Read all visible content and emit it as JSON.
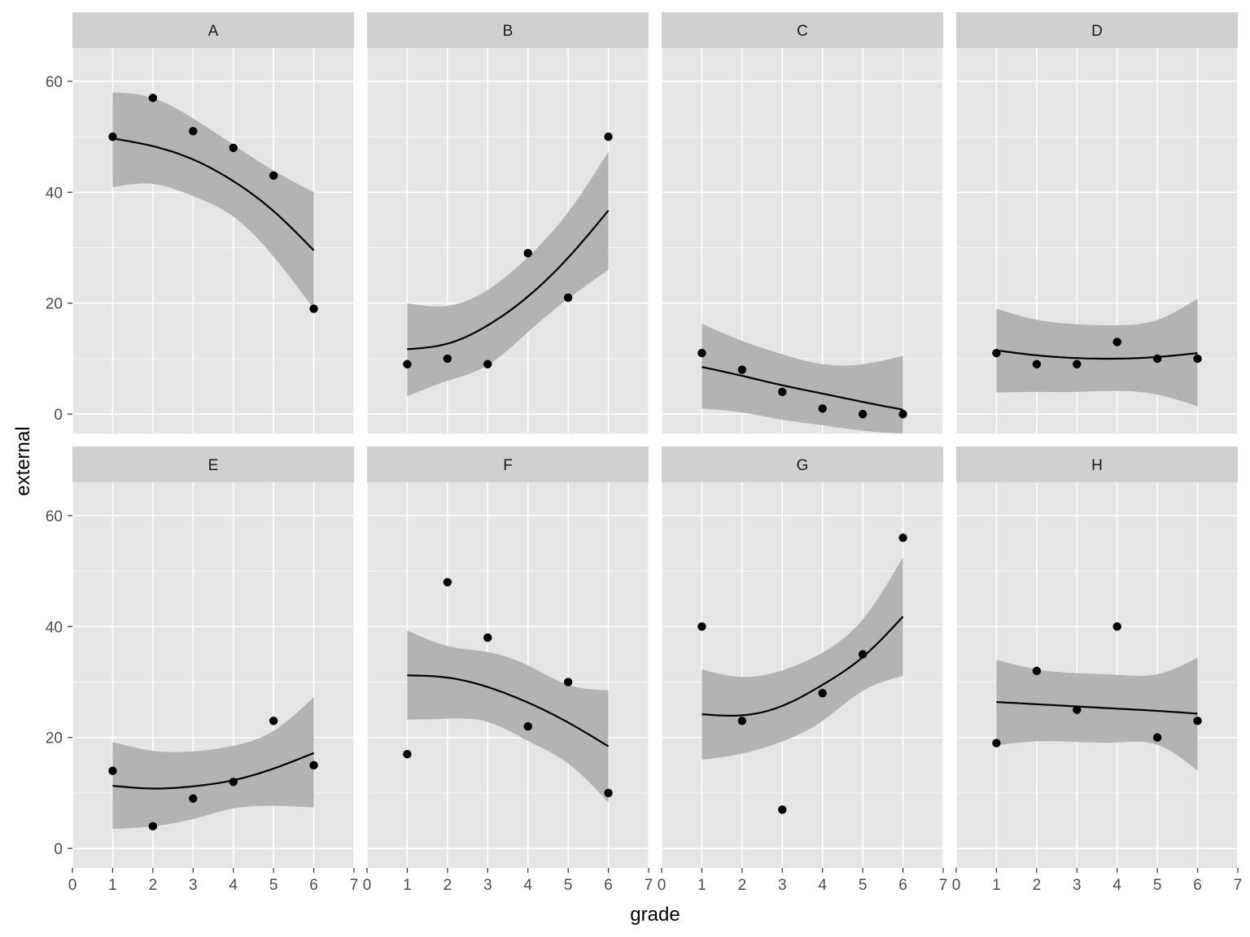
{
  "chart_data": {
    "type": "scatter",
    "facet_layout": "2 rows x 4 columns",
    "xlabel": "grade",
    "ylabel": "external",
    "xlim": [
      0,
      7
    ],
    "ylim": [
      -3.5,
      66
    ],
    "x_ticks": [
      0,
      1,
      2,
      3,
      4,
      5,
      6,
      7
    ],
    "y_ticks": [
      0,
      20,
      40,
      60
    ],
    "smoother": "quadratic fit with confidence band",
    "colors": {
      "panel_bg": "#e5e5e5",
      "strip_bg": "#d0d0d0",
      "band": "#b3b3b3",
      "point": "#000000",
      "line": "#000000",
      "tick_text": "#4d4d4d"
    },
    "facets": [
      {
        "label": "A",
        "x": [
          1,
          2,
          3,
          4,
          5,
          6
        ],
        "y": [
          50,
          57,
          51,
          48,
          43,
          19
        ],
        "fit": [
          49.7,
          48.3,
          45.9,
          42.0,
          36.6,
          29.5
        ],
        "lower": [
          40.9,
          41.5,
          39.3,
          35.6,
          28.4,
          19.0
        ],
        "upper": [
          58.0,
          57.0,
          53.3,
          48.6,
          43.9,
          40.0
        ]
      },
      {
        "label": "B",
        "x": [
          1,
          2,
          3,
          4,
          5,
          6
        ],
        "y": [
          9,
          10,
          9,
          29,
          21,
          50
        ],
        "fit": [
          11.7,
          12.7,
          16.0,
          21.2,
          28.2,
          36.7
        ],
        "lower": [
          3.2,
          6.0,
          8.8,
          14.8,
          20.8,
          26.0
        ],
        "upper": [
          20.0,
          19.5,
          22.4,
          28.3,
          36.4,
          47.3
        ]
      },
      {
        "label": "C",
        "x": [
          1,
          2,
          3,
          4,
          5,
          6
        ],
        "y": [
          11,
          8,
          4,
          1,
          0,
          0
        ],
        "fit": [
          8.5,
          6.9,
          5.2,
          3.7,
          2.2,
          0.8
        ],
        "lower": [
          1.0,
          0.3,
          -1.0,
          -2.0,
          -3.0,
          -3.5
        ],
        "upper": [
          16.3,
          13.2,
          10.8,
          9.0,
          9.0,
          10.5
        ]
      },
      {
        "label": "D",
        "x": [
          1,
          2,
          3,
          4,
          5,
          6
        ],
        "y": [
          11,
          9,
          9,
          13,
          10,
          10
        ],
        "fit": [
          11.5,
          10.6,
          10.1,
          10.0,
          10.3,
          11.0
        ],
        "lower": [
          3.9,
          4.0,
          4.0,
          4.2,
          3.5,
          1.4
        ],
        "upper": [
          19.0,
          17.0,
          16.2,
          16.0,
          17.0,
          20.8
        ]
      },
      {
        "label": "E",
        "x": [
          1,
          2,
          3,
          4,
          5,
          6
        ],
        "y": [
          14,
          4,
          9,
          12,
          23,
          15
        ],
        "fit": [
          11.3,
          10.8,
          11.2,
          12.3,
          14.4,
          17.2
        ],
        "lower": [
          3.5,
          4.0,
          5.3,
          7.2,
          7.7,
          7.4
        ],
        "upper": [
          19.2,
          17.6,
          17.5,
          18.5,
          21.2,
          27.3
        ]
      },
      {
        "label": "F",
        "x": [
          1,
          2,
          3,
          4,
          5,
          6
        ],
        "y": [
          17,
          48,
          38,
          22,
          30,
          10
        ],
        "fit": [
          31.2,
          30.8,
          29.1,
          26.3,
          22.7,
          18.4
        ],
        "lower": [
          23.2,
          23.4,
          22.8,
          19.4,
          15.3,
          8.3
        ],
        "upper": [
          39.3,
          36.5,
          35.4,
          33.0,
          29.5,
          28.5
        ]
      },
      {
        "label": "G",
        "x": [
          1,
          2,
          3,
          4,
          5,
          6
        ],
        "y": [
          40,
          23,
          7,
          28,
          35,
          56
        ],
        "fit": [
          24.2,
          24.0,
          25.7,
          29.5,
          34.5,
          41.8
        ],
        "lower": [
          16.0,
          17.1,
          19.3,
          23.0,
          28.4,
          31.1
        ],
        "upper": [
          32.3,
          30.9,
          32.1,
          35.3,
          41.3,
          52.5
        ]
      },
      {
        "label": "H",
        "x": [
          1,
          2,
          3,
          4,
          5,
          6
        ],
        "y": [
          19,
          32,
          25,
          40,
          20,
          23
        ],
        "fit": [
          26.4,
          26.0,
          25.6,
          25.2,
          24.8,
          24.3
        ],
        "lower": [
          18.6,
          19.3,
          19.2,
          19.1,
          18.7,
          14.0
        ],
        "upper": [
          34.0,
          32.3,
          31.6,
          31.3,
          31.4,
          34.4
        ]
      }
    ]
  }
}
